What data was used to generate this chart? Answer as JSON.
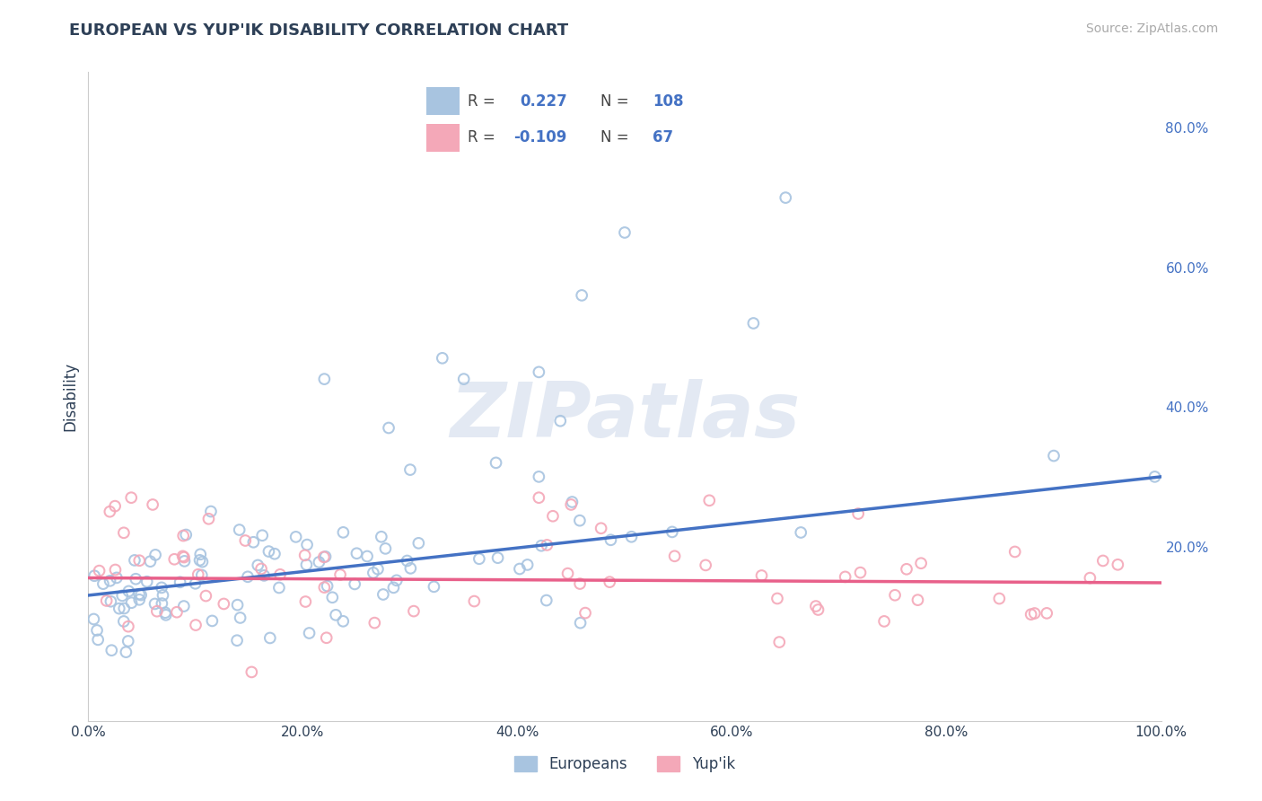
{
  "title": "EUROPEAN VS YUP'IK DISABILITY CORRELATION CHART",
  "source": "Source: ZipAtlas.com",
  "ylabel": "Disability",
  "xlim": [
    0.0,
    1.0
  ],
  "ylim": [
    -0.05,
    0.88
  ],
  "xticks": [
    0.0,
    0.2,
    0.4,
    0.6,
    0.8,
    1.0
  ],
  "xtick_labels": [
    "0.0%",
    "20.0%",
    "40.0%",
    "60.0%",
    "80.0%",
    "100.0%"
  ],
  "right_yticks": [
    0.0,
    0.2,
    0.4,
    0.6,
    0.8
  ],
  "right_ytick_labels": [
    "",
    "20.0%",
    "40.0%",
    "60.0%",
    "80.0%"
  ],
  "european_color": "#a8c4e0",
  "yupik_color": "#f4a8b8",
  "european_line_color": "#4472c4",
  "yupik_line_color": "#e8608a",
  "background_color": "#ffffff",
  "grid_color": "#cccccc",
  "title_color": "#2e4057",
  "axis_color": "#2e4057",
  "watermark": "ZIPatlas",
  "eu_trend_y0": 0.13,
  "eu_trend_y1": 0.3,
  "yp_trend_y0": 0.155,
  "yp_trend_y1": 0.148
}
